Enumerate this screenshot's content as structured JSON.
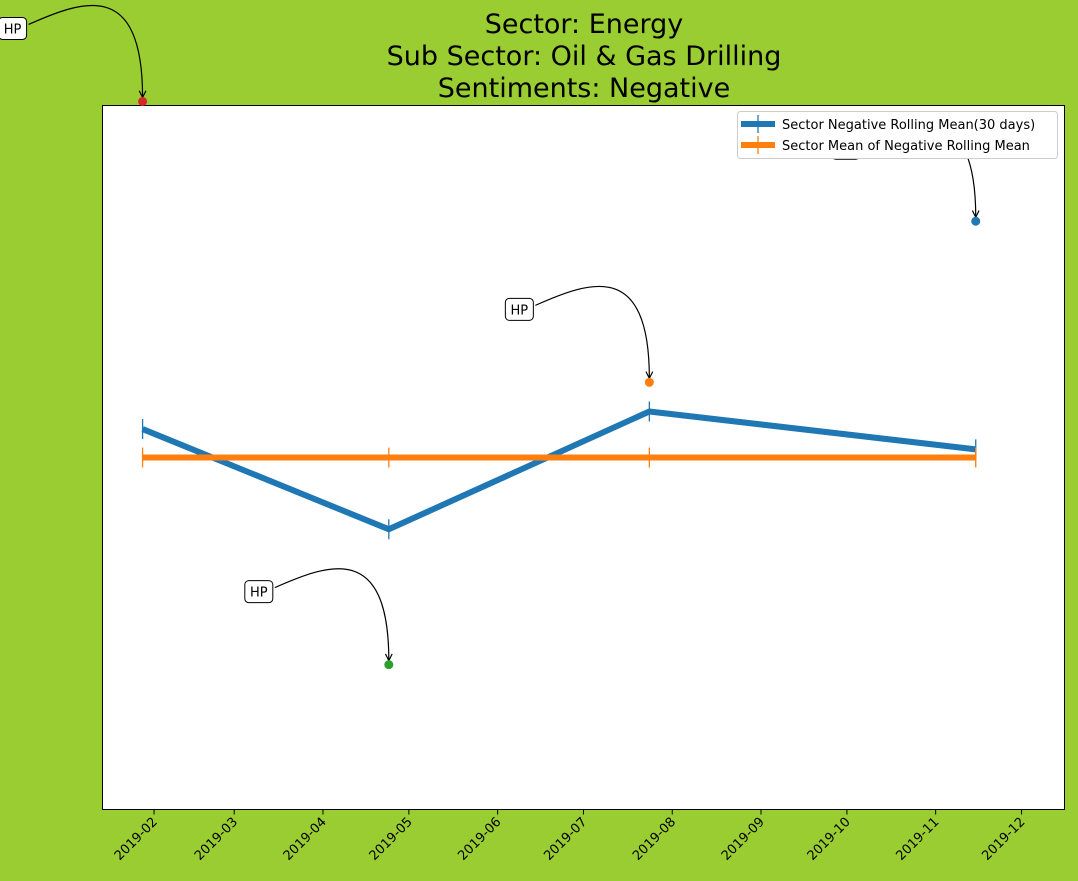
{
  "chart_data": {
    "type": "line",
    "title": [
      "Sector:  Energy",
      "Sub Sector:  Oil & Gas Drilling",
      "Sentiments:  Negative"
    ],
    "xlabel": "",
    "ylabel": "",
    "x_ticks": [
      "2019-02",
      "2019-03",
      "2019-04",
      "2019-05",
      "2019-06",
      "2019-07",
      "2019-08",
      "2019-09",
      "2019-10",
      "2019-11",
      "2019-12"
    ],
    "x_range": [
      "2019-01-14",
      "2019-12-16"
    ],
    "y_range": [
      -0.52,
      0.52
    ],
    "y_ticks_visible": false,
    "grid": false,
    "legend_location": "upper right",
    "background_color": "#9acd32",
    "series": [
      {
        "name": "Sector Negative Rolling Mean(30 days)",
        "color": "#1f77b4",
        "marker": "|",
        "x": [
          "2019-01-28",
          "2019-04-24",
          "2019-07-24",
          "2019-11-15"
        ],
        "y": [
          0.042,
          -0.106,
          0.068,
          0.012
        ]
      },
      {
        "name": "Sector Mean of Negative Rolling Mean",
        "color": "#ff7f0e",
        "marker": "|",
        "x": [
          "2019-01-28",
          "2019-04-24",
          "2019-07-24",
          "2019-11-15"
        ],
        "y": [
          0.0,
          0.0,
          0.0,
          0.0
        ]
      }
    ],
    "annotations": [
      {
        "text": "HP",
        "x": "2019-01-28",
        "y": 0.526,
        "color": "#d62728"
      },
      {
        "text": "HP",
        "x": "2019-04-24",
        "y": -0.306,
        "color": "#2ca02c"
      },
      {
        "text": "HP",
        "x": "2019-07-24",
        "y": 0.111,
        "color": "#ff7f0e"
      },
      {
        "text": "HP",
        "x": "2019-11-15",
        "y": 0.349,
        "color": "#1f77b4"
      }
    ]
  }
}
